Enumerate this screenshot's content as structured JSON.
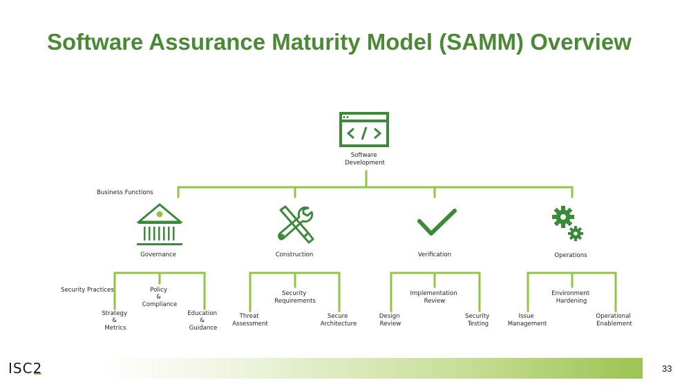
{
  "title": "Software Assurance Maturity Model (SAMM) Overview",
  "page_number": "33",
  "logo": {
    "prefix": "ISC",
    "suffix": "2"
  },
  "colors": {
    "title": "#4a8a34",
    "icon": "#3b8a3a",
    "line": "#8ec63f"
  },
  "root": {
    "label": [
      "Software",
      "Development"
    ],
    "icon": "code-window-icon"
  },
  "business_functions_label": "Business Functions",
  "security_practices_label": "Security Practices",
  "functions": [
    {
      "label": "Governance",
      "icon": "bank-building-icon",
      "practices": [
        {
          "label": [
            "Strategy",
            "&",
            "Metrics"
          ]
        },
        {
          "label": [
            "Policy",
            "&",
            "Compliance"
          ]
        },
        {
          "label": [
            "Education",
            "&",
            "Guidance"
          ]
        }
      ]
    },
    {
      "label": "Construction",
      "icon": "wrench-screwdriver-icon",
      "practices": [
        {
          "label": [
            "Threat",
            "Assessment"
          ]
        },
        {
          "label": [
            "Security",
            "Requirements"
          ]
        },
        {
          "label": [
            "Secure",
            "Architecture"
          ]
        }
      ]
    },
    {
      "label": "Verification",
      "icon": "checkmark-icon",
      "practices": [
        {
          "label": [
            "Design",
            "Review"
          ]
        },
        {
          "label": [
            "Implementation",
            "Review"
          ]
        },
        {
          "label": [
            "Security",
            "Testing"
          ]
        }
      ]
    },
    {
      "label": "Operations",
      "icon": "gears-icon",
      "practices": [
        {
          "label": [
            "Issue",
            "Management"
          ]
        },
        {
          "label": [
            "Environment",
            "Hardening"
          ]
        },
        {
          "label": [
            "Operational",
            "Enablement"
          ]
        }
      ]
    }
  ]
}
